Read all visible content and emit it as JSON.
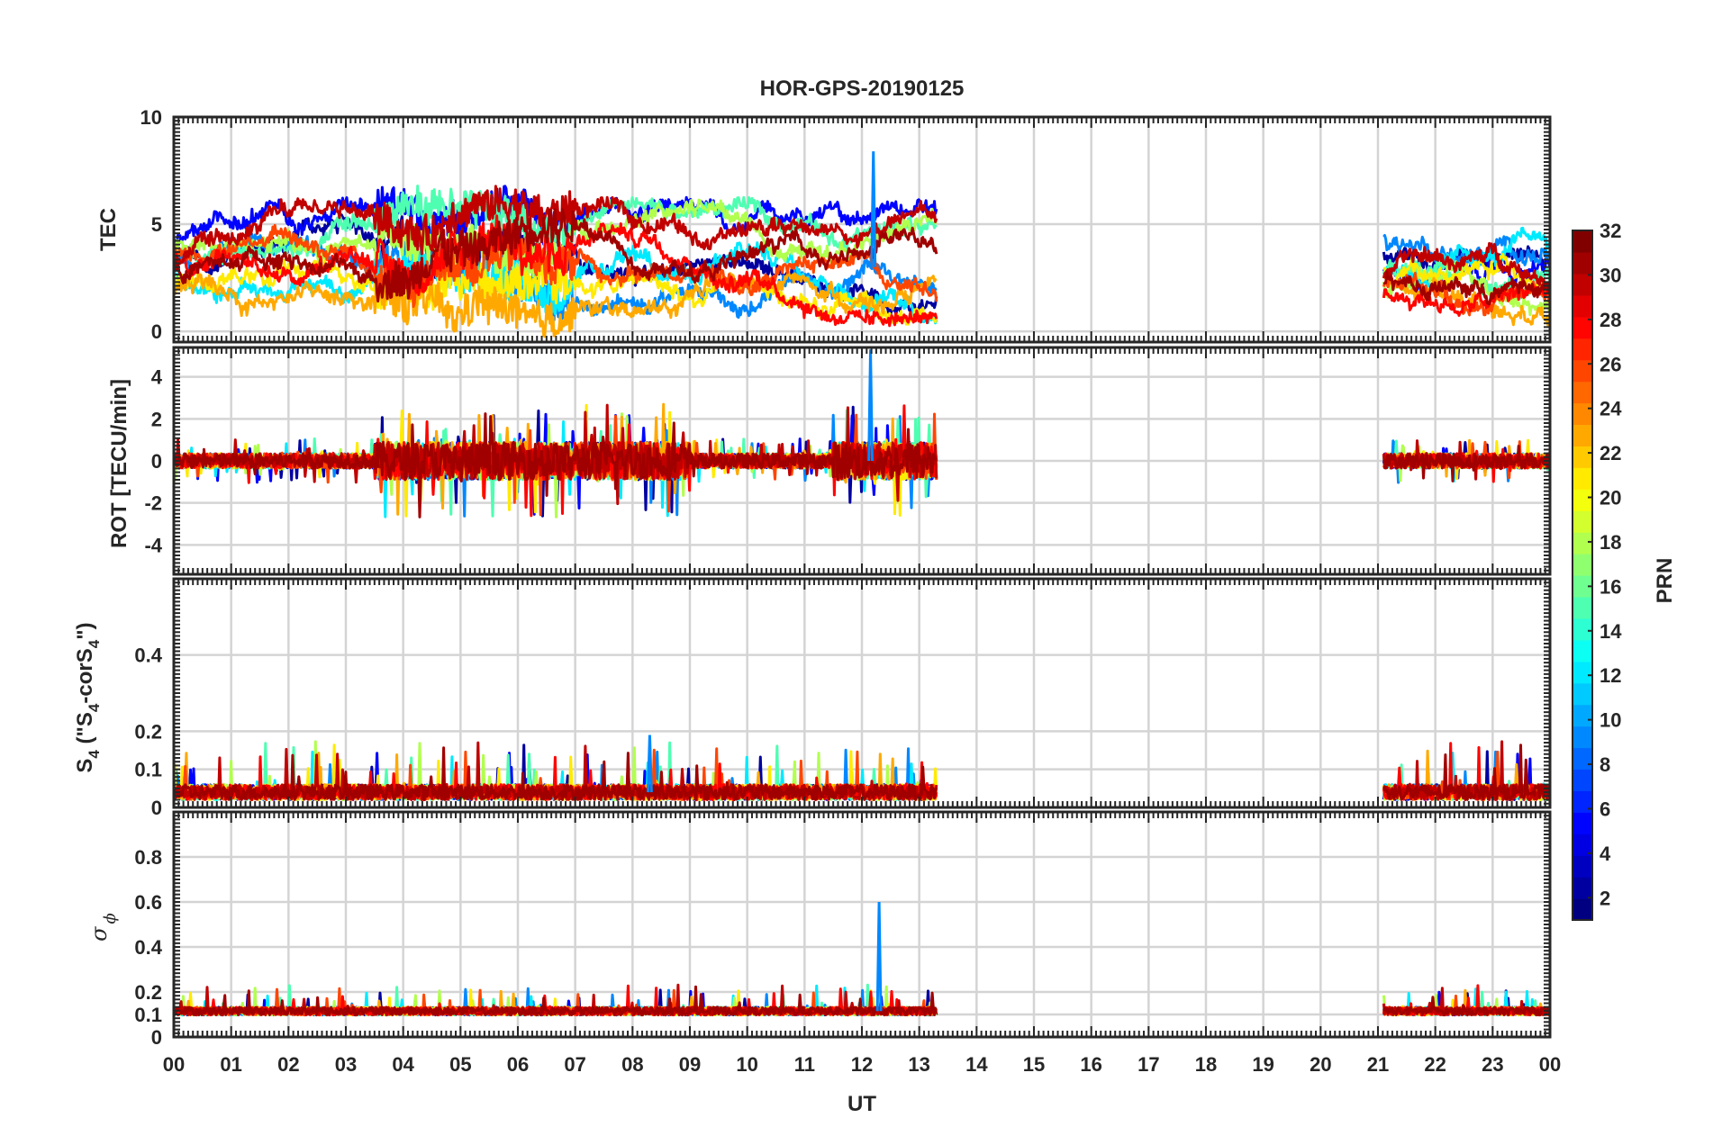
{
  "chart_data": {
    "type": "line",
    "title": "HOR-GPS-20190125",
    "xlabel": "UT",
    "x_tick_labels": [
      "00",
      "01",
      "02",
      "03",
      "04",
      "05",
      "06",
      "07",
      "08",
      "09",
      "10",
      "11",
      "12",
      "13",
      "14",
      "15",
      "16",
      "17",
      "18",
      "19",
      "20",
      "21",
      "22",
      "23",
      "00"
    ],
    "xlim": [
      0,
      24
    ],
    "grid": true,
    "data_coverage_ut": [
      [
        0.0,
        13.3
      ],
      [
        21.1,
        24.0
      ]
    ],
    "panels": [
      {
        "id": "tec",
        "ylabel": "TEC",
        "ylim": [
          -0.5,
          10
        ],
        "ytick_labels": [
          "0",
          "5",
          "10"
        ],
        "ytick_values": [
          0,
          5,
          10
        ],
        "typical_range": [
          1,
          5
        ],
        "peak": {
          "ut": 12.2,
          "value": 8.4
        }
      },
      {
        "id": "rot",
        "ylabel": "ROT [TECU/min]",
        "ylim": [
          -5.4,
          5.4
        ],
        "ytick_labels": [
          "-4",
          "-2",
          "0",
          "2",
          "4"
        ],
        "ytick_values": [
          -4,
          -2,
          0,
          2,
          4
        ],
        "typical_range": [
          -0.5,
          0.5
        ],
        "peak": {
          "ut": 12.15,
          "value": 5.3
        }
      },
      {
        "id": "s4",
        "ylabel_main": "S",
        "ylabel_sub": "4",
        "ylabel_open": " (\"S",
        "ylabel_sub2": "4",
        "ylabel_mid": "-corS",
        "ylabel_sub3": "4",
        "ylabel_close": "\")",
        "ylim": [
          0,
          0.6
        ],
        "ytick_labels": [
          "0",
          "0.1",
          "0.2",
          "0.4"
        ],
        "ytick_values": [
          0,
          0.1,
          0.2,
          0.4
        ],
        "typical_range": [
          0,
          0.08
        ],
        "peak": {
          "ut": 8.3,
          "value": 0.19
        }
      },
      {
        "id": "sigma",
        "ylabel_main": "σ",
        "ylabel_sub": "ϕ",
        "ylim": [
          0,
          1
        ],
        "ytick_labels": [
          "0",
          "0.1",
          "0.2",
          "0.4",
          "0.6",
          "0.8"
        ],
        "ytick_values": [
          0,
          0.1,
          0.2,
          0.4,
          0.6,
          0.8
        ],
        "typical_range": [
          0.08,
          0.15
        ],
        "peak": {
          "ut": 12.3,
          "value": 0.6
        }
      }
    ],
    "colorbar": {
      "label": "PRN",
      "range": [
        1,
        32
      ],
      "tick_labels": [
        "2",
        "4",
        "6",
        "8",
        "10",
        "12",
        "14",
        "16",
        "18",
        "20",
        "22",
        "24",
        "26",
        "28",
        "30",
        "32"
      ],
      "tick_values": [
        2,
        4,
        6,
        8,
        10,
        12,
        14,
        16,
        18,
        20,
        22,
        24,
        26,
        28,
        30,
        32
      ],
      "colormap": "jet"
    },
    "series": [
      {
        "prn": 2
      },
      {
        "prn": 5
      },
      {
        "prn": 9
      },
      {
        "prn": 12
      },
      {
        "prn": 15
      },
      {
        "prn": 18
      },
      {
        "prn": 21
      },
      {
        "prn": 23
      },
      {
        "prn": 26
      },
      {
        "prn": 28
      },
      {
        "prn": 30
      },
      {
        "prn": 31
      }
    ]
  }
}
